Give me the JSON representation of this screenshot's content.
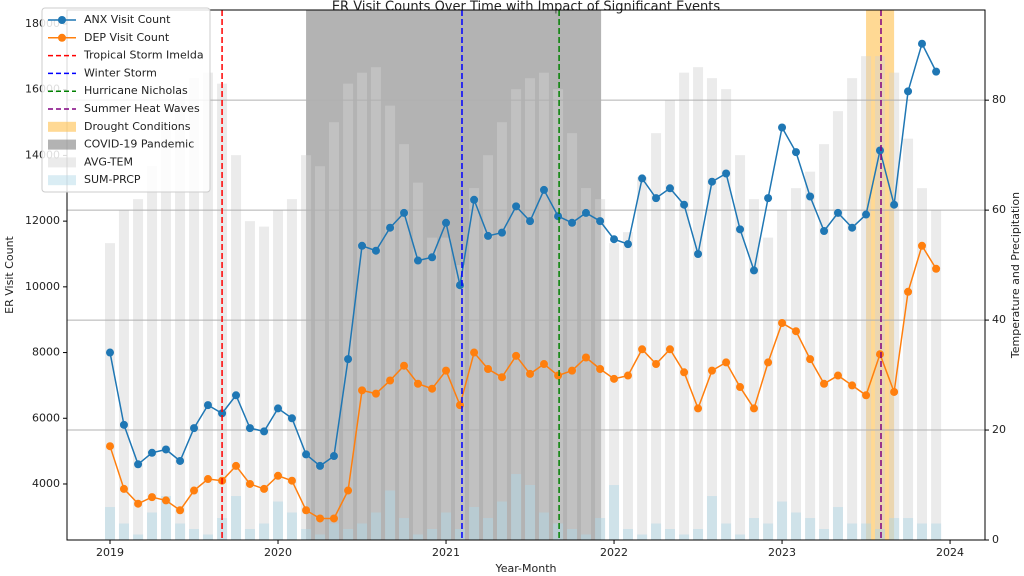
{
  "chart_data": {
    "type": "line",
    "title": "ER Visit Counts Over Time with Impact of Significant Events",
    "x_label": "Year-Month",
    "y_label": "ER Visit Count",
    "y2_label": "Temperature and Precipitation",
    "x": [
      2019,
      2019.083,
      2019.167,
      2019.25,
      2019.333,
      2019.417,
      2019.5,
      2019.583,
      2019.667,
      2019.75,
      2019.833,
      2019.917,
      2020,
      2020.083,
      2020.167,
      2020.25,
      2020.333,
      2020.417,
      2020.5,
      2020.583,
      2020.667,
      2020.75,
      2020.833,
      2020.917,
      2021,
      2021.083,
      2021.167,
      2021.25,
      2021.333,
      2021.417,
      2021.5,
      2021.583,
      2021.667,
      2021.75,
      2021.833,
      2021.917,
      2022,
      2022.083,
      2022.167,
      2022.25,
      2022.333,
      2022.417,
      2022.5,
      2022.583,
      2022.667,
      2022.75,
      2022.833,
      2022.917,
      2023,
      2023.083,
      2023.167,
      2023.25,
      2023.333,
      2023.417,
      2023.5,
      2023.583,
      2023.667,
      2023.75,
      2023.833,
      2023.917
    ],
    "series": [
      {
        "name": "ANX Visit Count",
        "color": "#1f77b4",
        "axis": "y",
        "values": [
          8000,
          5800,
          4600,
          4950,
          5050,
          4700,
          5700,
          6400,
          6150,
          6700,
          5700,
          5600,
          6300,
          6000,
          4900,
          4550,
          4850,
          7800,
          11250,
          11100,
          11800,
          12250,
          10800,
          10900,
          11950,
          10050,
          12650,
          11550,
          11650,
          12450,
          12000,
          12950,
          12150,
          11950,
          12250,
          12000,
          11450,
          11300,
          13300,
          12700,
          13000,
          12500,
          11000,
          13200,
          13450,
          11750,
          10500,
          12700,
          14850,
          14100,
          12750,
          11700,
          12250,
          11800,
          12200,
          14150,
          12500,
          15950,
          17400,
          16550
        ]
      },
      {
        "name": "DEP Visit Count",
        "color": "#ff7f0e",
        "axis": "y",
        "values": [
          5150,
          3850,
          3400,
          3600,
          3500,
          3200,
          3800,
          4150,
          4100,
          4550,
          4000,
          3850,
          4250,
          4100,
          3200,
          2950,
          2950,
          3800,
          6850,
          6750,
          7150,
          7600,
          7050,
          6900,
          7450,
          6400,
          8000,
          7500,
          7250,
          7900,
          7350,
          7650,
          7300,
          7450,
          7850,
          7500,
          7200,
          7300,
          8100,
          7650,
          8100,
          7400,
          6300,
          7450,
          7700,
          6950,
          6300,
          7700,
          8900,
          8650,
          7800,
          7050,
          7300,
          7000,
          6700,
          7950,
          6800,
          9850,
          11250,
          10550
        ]
      },
      {
        "name": "AVG-TEM",
        "type": "bar",
        "color": "#d3d3d3",
        "axis": "y2",
        "values": [
          54,
          60,
          62,
          68,
          76,
          82,
          84,
          85,
          83,
          70,
          58,
          57,
          60,
          62,
          70,
          68,
          76,
          83,
          85,
          86,
          79,
          72,
          65,
          55,
          55,
          50,
          64,
          70,
          76,
          82,
          84,
          85,
          82,
          74,
          64,
          62,
          54,
          56,
          66,
          74,
          80,
          85,
          86,
          84,
          82,
          70,
          62,
          55,
          60,
          64,
          67,
          72,
          78,
          84,
          88,
          88,
          85,
          73,
          64,
          60
        ]
      },
      {
        "name": "SUM-PRCP",
        "type": "bar",
        "color": "#add8e6",
        "axis": "y2",
        "values": [
          6,
          3,
          1,
          5,
          8,
          3,
          2,
          1,
          4,
          8,
          2,
          3,
          7,
          5,
          2,
          1,
          3,
          2,
          3,
          5,
          9,
          4,
          1,
          2,
          5,
          2,
          6,
          4,
          7,
          12,
          10,
          5,
          3,
          2,
          1,
          4,
          10,
          2,
          1,
          3,
          2,
          1,
          2,
          8,
          3,
          1,
          4,
          3,
          7,
          5,
          4,
          2,
          6,
          3,
          3,
          2,
          4,
          4,
          3,
          3
        ]
      }
    ],
    "events": [
      {
        "name": "Tropical Storm Imelda",
        "x": 2019.667,
        "color": "#ff0000"
      },
      {
        "name": "Winter Storm",
        "x": 2021.095,
        "color": "#0000ff"
      },
      {
        "name": "Hurricane Nicholas",
        "x": 2021.673,
        "color": "#008000"
      },
      {
        "name": "Summer Heat Waves",
        "x": 2023.589,
        "color": "#800080"
      }
    ],
    "spans": [
      {
        "name": "Drought Conditions",
        "start": 2023.5,
        "end": 2023.667,
        "color": "#ffc04d"
      },
      {
        "name": "COVID-19 Pandemic",
        "start": 2020.167,
        "end": 2021.923,
        "color": "#808080"
      }
    ],
    "xlim": [
      2018.744,
      2024.208
    ],
    "xticks": [
      2019,
      2020,
      2021,
      2022,
      2023,
      2024
    ],
    "ylim": [
      2295,
      18426
    ],
    "yticks": [
      4000,
      6000,
      8000,
      10000,
      12000,
      14000,
      16000,
      18000
    ],
    "y2lim": [
      0,
      96.4
    ],
    "y2ticks": [
      0,
      20,
      40,
      60,
      80
    ],
    "grid": true,
    "legend": "upper left"
  }
}
